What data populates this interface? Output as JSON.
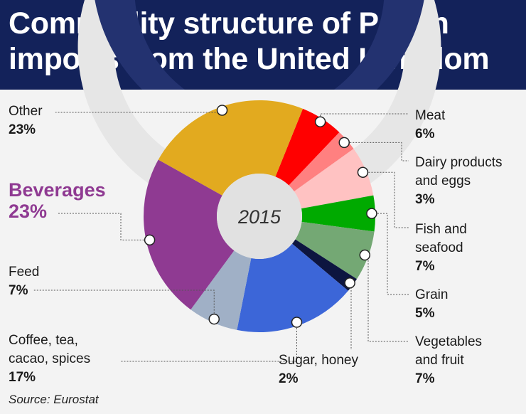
{
  "header": {
    "title": "Commodity structure of Polish imports from the United Kingdom"
  },
  "source": "Source: Eurostat",
  "chart_data": {
    "type": "pie",
    "variant": "donut",
    "title": "Commodity structure of Polish imports from the United Kingdom",
    "center_label": "2015",
    "unit": "%",
    "highlight": "Beverages",
    "slices": [
      {
        "name": "Meat",
        "value": 6,
        "label": "6%",
        "color": "#ff0000"
      },
      {
        "name": "Dairy products and eggs",
        "value": 3,
        "label": "3%",
        "color": "#ff8080"
      },
      {
        "name": "Fish and seafood",
        "value": 7,
        "label": "7%",
        "color": "#ffc2c2"
      },
      {
        "name": "Grain",
        "value": 5,
        "label": "5%",
        "color": "#00aa00"
      },
      {
        "name": "Vegetables and fruit",
        "value": 7,
        "label": "7%",
        "color": "#74a874"
      },
      {
        "name": "Sugar, honey",
        "value": 2,
        "label": "2%",
        "color": "#0d1540"
      },
      {
        "name": "Coffee, tea, cacao, spices",
        "value": 17,
        "label": "17%",
        "color": "#3c66d8"
      },
      {
        "name": "Feed",
        "value": 7,
        "label": "7%",
        "color": "#a0b0c6"
      },
      {
        "name": "Beverages",
        "value": 23,
        "label": "23%",
        "color": "#8f3a92"
      },
      {
        "name": "Other",
        "value": 23,
        "label": "23%",
        "color": "#e2aa1f"
      }
    ]
  },
  "labels": {
    "meat": {
      "name": "Meat",
      "pct": "6%"
    },
    "dairy": {
      "name_1": "Dairy products",
      "name_2": "and eggs",
      "pct": "3%"
    },
    "fish": {
      "name_1": "Fish and",
      "name_2": "seafood",
      "pct": "7%"
    },
    "grain": {
      "name": "Grain",
      "pct": "5%"
    },
    "veg": {
      "name_1": "Vegetables",
      "name_2": "and fruit",
      "pct": "7%"
    },
    "sugar": {
      "name": "Sugar, honey",
      "pct": "2%"
    },
    "coffee": {
      "name_1": "Coffee, tea,",
      "name_2": "cacao, spices",
      "pct": "17%"
    },
    "feed": {
      "name": "Feed",
      "pct": "7%"
    },
    "beverages": {
      "name": "Beverages",
      "pct": "23%"
    },
    "other": {
      "name": "Other",
      "pct": "23%"
    }
  }
}
